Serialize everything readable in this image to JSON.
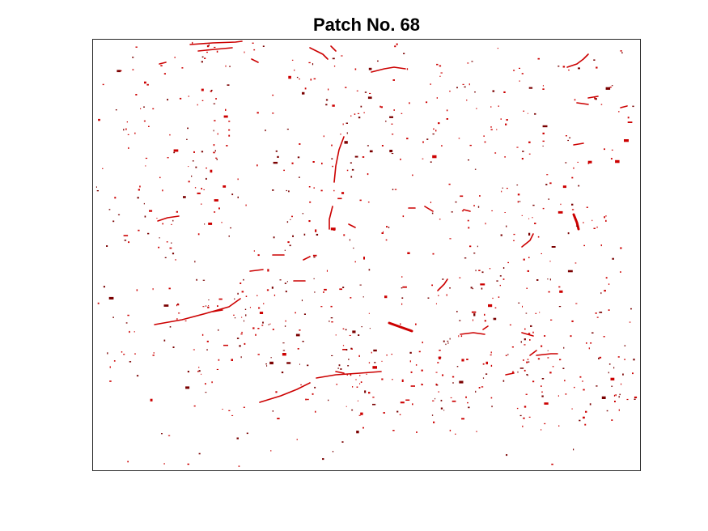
{
  "figure": {
    "title": "Patch No. 68"
  },
  "image": {
    "background_color": "#ffffff",
    "mark_color": "#cc0000",
    "mark_dark_color": "#7a0000",
    "axis_color": "#262626"
  }
}
